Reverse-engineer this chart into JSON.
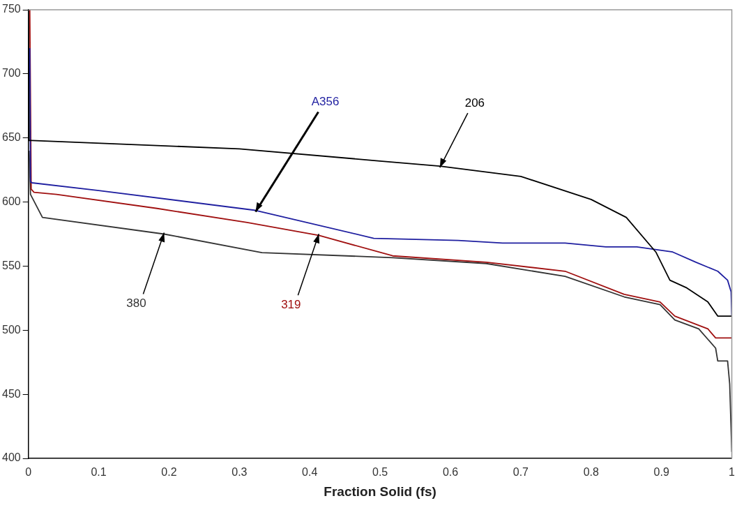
{
  "chart_data": {
    "type": "line",
    "xlabel": "Fraction Solid (fs)",
    "xlim": [
      0,
      1
    ],
    "xticks": [
      0,
      0.1,
      0.2,
      0.3,
      0.4,
      0.5,
      0.6,
      0.7,
      0.8,
      0.9,
      1
    ],
    "ylim": [
      400,
      750
    ],
    "yticks": [
      400,
      450,
      500,
      550,
      600,
      650,
      700,
      750
    ],
    "grid": false,
    "legend": false,
    "marker": "none",
    "line_style": "solid",
    "series": [
      {
        "name": "206",
        "color": "#000000",
        "x": [
          0,
          0.001,
          0.005,
          0.3,
          0.5,
          0.585,
          0.7,
          0.8,
          0.85,
          0.892,
          0.912,
          0.936,
          0.966,
          0.98,
          1
        ],
        "values": [
          750,
          648,
          648,
          641.5,
          632,
          628,
          620,
          602,
          588,
          561,
          539,
          533,
          522,
          511,
          511
        ]
      },
      {
        "name": "A356",
        "color": "#1f1fa0",
        "x": [
          0.002,
          0.003,
          0.005,
          0.1,
          0.323,
          0.491,
          0.611,
          0.674,
          0.763,
          0.821,
          0.865,
          0.916,
          0.949,
          0.98,
          0.994,
          0.999,
          1
        ],
        "values": [
          720,
          616,
          615,
          609,
          593.5,
          571.7,
          570,
          568,
          568,
          565,
          565,
          561,
          553,
          546,
          539,
          530,
          511
        ]
      },
      {
        "name": "319",
        "color": "#a01010",
        "x": [
          0.002,
          0.004,
          0.008,
          0.04,
          0.183,
          0.311,
          0.413,
          0.518,
          0.651,
          0.763,
          0.847,
          0.898,
          0.919,
          0.966,
          0.977,
          1
        ],
        "values": [
          750,
          610,
          607.6,
          606,
          595,
          584,
          574,
          558,
          553,
          546,
          528,
          522,
          511,
          501,
          494,
          494
        ]
      },
      {
        "name": "380",
        "color": "#333333",
        "x": [
          0.001,
          0.003,
          0.02,
          0.193,
          0.332,
          0.518,
          0.651,
          0.763,
          0.847,
          0.898,
          0.919,
          0.953,
          0.977,
          0.98,
          0.994,
          0.997,
          1
        ],
        "values": [
          640,
          606,
          588,
          575,
          560.5,
          556.6,
          552,
          542,
          526,
          520,
          508,
          501,
          486,
          476,
          476,
          458,
          405
        ]
      }
    ]
  }
}
